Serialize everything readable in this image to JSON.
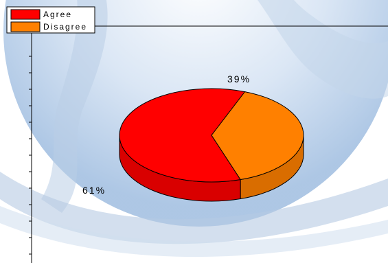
{
  "chart_data": {
    "type": "pie",
    "title": "",
    "legend_position": "top-left",
    "categories": [
      "Agree",
      "Disagree"
    ],
    "values": [
      61,
      39
    ],
    "labels": [
      "61%",
      "39%"
    ],
    "colors": [
      "#ff0000",
      "#ff8000"
    ]
  }
}
